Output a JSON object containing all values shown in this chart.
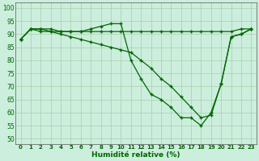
{
  "title": "",
  "xlabel": "Humidité relative (%)",
  "ylabel": "",
  "background_color": "#cceedd",
  "grid_color": "#aaccaa",
  "line_color": "#006600",
  "marker_color": "#006600",
  "xlim": [
    -0.5,
    23.5
  ],
  "ylim": [
    48,
    102
  ],
  "yticks": [
    50,
    55,
    60,
    65,
    70,
    75,
    80,
    85,
    90,
    95,
    100
  ],
  "xticks": [
    0,
    1,
    2,
    3,
    4,
    5,
    6,
    7,
    8,
    9,
    10,
    11,
    12,
    13,
    14,
    15,
    16,
    17,
    18,
    19,
    20,
    21,
    22,
    23
  ],
  "series": [
    {
      "x": [
        0,
        1,
        2,
        3,
        4,
        5,
        6,
        7,
        8,
        9,
        10,
        11,
        12,
        13,
        14,
        15,
        16,
        17,
        18,
        19,
        20,
        21,
        22,
        23
      ],
      "y": [
        88,
        92,
        92,
        91,
        91,
        91,
        91,
        91,
        91,
        91,
        91,
        91,
        91,
        91,
        91,
        91,
        91,
        91,
        91,
        91,
        91,
        91,
        92,
        92
      ]
    },
    {
      "x": [
        0,
        1,
        2,
        3,
        4,
        5,
        6,
        7,
        8,
        9,
        10,
        11,
        12,
        13,
        14,
        15,
        16,
        17,
        18,
        19,
        20,
        21,
        22,
        23
      ],
      "y": [
        88,
        92,
        92,
        92,
        91,
        91,
        91,
        92,
        93,
        94,
        94,
        80,
        73,
        67,
        65,
        62,
        58,
        58,
        55,
        60,
        71,
        89,
        90,
        92
      ]
    },
    {
      "x": [
        0,
        1,
        2,
        3,
        4,
        5,
        6,
        7,
        8,
        9,
        10,
        11,
        12,
        13,
        14,
        15,
        16,
        17,
        18,
        19,
        20,
        21,
        22,
        23
      ],
      "y": [
        88,
        92,
        91,
        91,
        90,
        89,
        88,
        87,
        86,
        85,
        84,
        83,
        80,
        77,
        73,
        70,
        66,
        62,
        58,
        59,
        71,
        89,
        90,
        92
      ]
    }
  ]
}
